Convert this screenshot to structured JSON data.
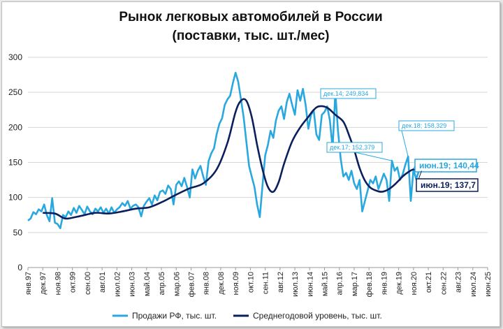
{
  "chart_data": {
    "type": "line",
    "title_line1": "Рынок легковых автомобилей в России",
    "title_line2": "(поставки, тыс. шт./мес)",
    "y_ticks": [
      "0",
      "50",
      "100",
      "150",
      "200",
      "250",
      "300"
    ],
    "ylim": [
      0,
      300
    ],
    "x_ticks": [
      "янв.97",
      "дек.97",
      "ноя.98",
      "окт.99",
      "сен.00",
      "авг.01",
      "июл.02",
      "июн.03",
      "май.04",
      "апр.05",
      "мар.06",
      "фев.07",
      "янв.08",
      "дек.08",
      "ноя.09",
      "окт.10",
      "сен.11",
      "авг.12",
      "июл.13",
      "июн.14",
      "май.15",
      "апр.16",
      "мар.17",
      "фев.18",
      "янв.19",
      "дек.19",
      "ноя.20",
      "окт.21",
      "сен.22",
      "авг.23",
      "июл.24",
      "июн.25"
    ],
    "grid": "horizontal",
    "legend_position": "bottom",
    "colors": {
      "sales": "#29a8df",
      "avg": "#0b1f5c"
    },
    "series": [
      {
        "name": "Продажи РФ, тыс. шт.",
        "points": [
          [
            0,
            67
          ],
          [
            2,
            70
          ],
          [
            4,
            79
          ],
          [
            6,
            76
          ],
          [
            8,
            83
          ],
          [
            10,
            80
          ],
          [
            12,
            90
          ],
          [
            14,
            75
          ],
          [
            16,
            66
          ],
          [
            18,
            99
          ],
          [
            20,
            64
          ],
          [
            22,
            62
          ],
          [
            24,
            56
          ],
          [
            26,
            75
          ],
          [
            28,
            72
          ],
          [
            30,
            80
          ],
          [
            32,
            75
          ],
          [
            34,
            85
          ],
          [
            36,
            78
          ],
          [
            38,
            88
          ],
          [
            40,
            82
          ],
          [
            42,
            76
          ],
          [
            44,
            87
          ],
          [
            46,
            80
          ],
          [
            48,
            76
          ],
          [
            50,
            84
          ],
          [
            52,
            80
          ],
          [
            54,
            86
          ],
          [
            56,
            78
          ],
          [
            58,
            84
          ],
          [
            60,
            77
          ],
          [
            62,
            86
          ],
          [
            64,
            78
          ],
          [
            66,
            83
          ],
          [
            68,
            86
          ],
          [
            70,
            92
          ],
          [
            72,
            88
          ],
          [
            74,
            95
          ],
          [
            76,
            84
          ],
          [
            78,
            88
          ],
          [
            80,
            90
          ],
          [
            82,
            86
          ],
          [
            84,
            73
          ],
          [
            86,
            88
          ],
          [
            88,
            94
          ],
          [
            90,
            99
          ],
          [
            92,
            90
          ],
          [
            94,
            103
          ],
          [
            96,
            96
          ],
          [
            98,
            108
          ],
          [
            100,
            110
          ],
          [
            102,
            105
          ],
          [
            104,
            117
          ],
          [
            106,
            112
          ],
          [
            108,
            90
          ],
          [
            110,
            118
          ],
          [
            112,
            123
          ],
          [
            114,
            116
          ],
          [
            116,
            128
          ],
          [
            118,
            115
          ],
          [
            120,
            100
          ],
          [
            122,
            140
          ],
          [
            124,
            127
          ],
          [
            126,
            138
          ],
          [
            128,
            145
          ],
          [
            130,
            130
          ],
          [
            132,
            118
          ],
          [
            134,
            152
          ],
          [
            136,
            163
          ],
          [
            138,
            170
          ],
          [
            140,
            190
          ],
          [
            142,
            205
          ],
          [
            144,
            213
          ],
          [
            146,
            232
          ],
          [
            148,
            240
          ],
          [
            150,
            245
          ],
          [
            152,
            263
          ],
          [
            154,
            278
          ],
          [
            156,
            265
          ],
          [
            158,
            240
          ],
          [
            160,
            215
          ],
          [
            162,
            180
          ],
          [
            164,
            145
          ],
          [
            166,
            130
          ],
          [
            168,
            115
          ],
          [
            170,
            90
          ],
          [
            172,
            72
          ],
          [
            174,
            118
          ],
          [
            176,
            160
          ],
          [
            178,
            175
          ],
          [
            180,
            195
          ],
          [
            182,
            185
          ],
          [
            184,
            210
          ],
          [
            186,
            224
          ],
          [
            188,
            230
          ],
          [
            190,
            212
          ],
          [
            192,
            236
          ],
          [
            194,
            248
          ],
          [
            196,
            232
          ],
          [
            198,
            218
          ],
          [
            200,
            253
          ],
          [
            202,
            238
          ],
          [
            204,
            255
          ],
          [
            206,
            232
          ],
          [
            208,
            198
          ],
          [
            210,
            218
          ],
          [
            212,
            224
          ],
          [
            214,
            190
          ],
          [
            216,
            182
          ],
          [
            218,
            218
          ],
          [
            220,
            222
          ],
          [
            222,
            230
          ],
          [
            224,
            210
          ],
          [
            226,
            170
          ],
          [
            228,
            249.834
          ],
          [
            230,
            195
          ],
          [
            232,
            155
          ],
          [
            234,
            130
          ],
          [
            236,
            135
          ],
          [
            238,
            125
          ],
          [
            240,
            138
          ],
          [
            242,
            120
          ],
          [
            244,
            112
          ],
          [
            246,
            125
          ],
          [
            248,
            80
          ],
          [
            250,
            95
          ],
          [
            252,
            110
          ],
          [
            254,
            125
          ],
          [
            256,
            120
          ],
          [
            258,
            130
          ],
          [
            260,
            112
          ],
          [
            262,
            123
          ],
          [
            264,
            134
          ],
          [
            266,
            125
          ],
          [
            268,
            95
          ],
          [
            270,
            152.379
          ],
          [
            272,
            138
          ],
          [
            274,
            143
          ],
          [
            276,
            125
          ],
          [
            278,
            133
          ],
          [
            280,
            147
          ],
          [
            282,
            158.329
          ],
          [
            284,
            95
          ],
          [
            286,
            140.44
          ],
          [
            288,
            126
          ],
          [
            290,
            138
          ]
        ]
      },
      {
        "name": "Среднегодовой уровень, тыс. шт.",
        "points": [
          [
            11,
            78
          ],
          [
            20,
            77
          ],
          [
            26,
            71
          ],
          [
            30,
            70
          ],
          [
            40,
            74
          ],
          [
            50,
            78
          ],
          [
            60,
            77
          ],
          [
            70,
            80
          ],
          [
            80,
            84
          ],
          [
            90,
            86
          ],
          [
            100,
            94
          ],
          [
            110,
            104
          ],
          [
            120,
            113
          ],
          [
            130,
            120
          ],
          [
            140,
            140
          ],
          [
            148,
            178
          ],
          [
            154,
            222
          ],
          [
            158,
            238
          ],
          [
            162,
            238
          ],
          [
            166,
            215
          ],
          [
            170,
            175
          ],
          [
            174,
            140
          ],
          [
            178,
            115
          ],
          [
            182,
            108
          ],
          [
            186,
            122
          ],
          [
            190,
            148
          ],
          [
            196,
            180
          ],
          [
            202,
            200
          ],
          [
            208,
            215
          ],
          [
            212,
            225
          ],
          [
            216,
            230
          ],
          [
            222,
            228
          ],
          [
            228,
            218
          ],
          [
            234,
            208
          ],
          [
            238,
            190
          ],
          [
            242,
            168
          ],
          [
            246,
            142
          ],
          [
            250,
            124
          ],
          [
            254,
            114
          ],
          [
            258,
            110
          ],
          [
            262,
            108
          ],
          [
            266,
            110
          ],
          [
            270,
            115
          ],
          [
            274,
            122
          ],
          [
            278,
            130
          ],
          [
            282,
            136
          ],
          [
            286,
            140
          ],
          [
            290,
            138
          ],
          [
            294,
            137.7
          ]
        ]
      }
    ],
    "annotations": {
      "dec14": "дек.14; 249,834",
      "dec17": "дек.17; 152,379",
      "dec18": "дек.18; 158,329",
      "jun19_sales": "июн.19; 140,44",
      "jun19_avg": "июн.19;  137,7"
    },
    "legend_sales": "Продажи РФ, тыс. шт.",
    "legend_avg": "Среднегодовой уровень, тыс. шт."
  }
}
